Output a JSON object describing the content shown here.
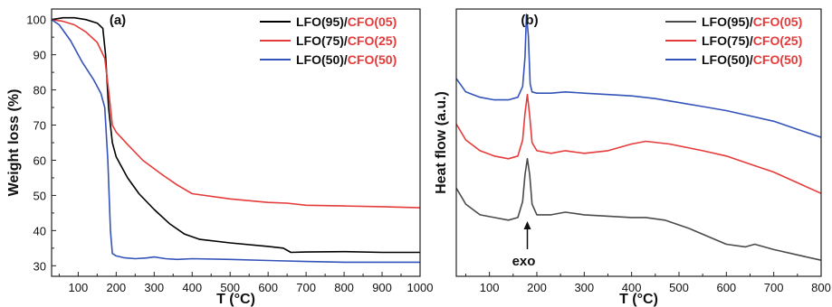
{
  "colors": {
    "black": "#000000",
    "red": "#e53b3b",
    "blue": "#3353b8",
    "gray": "#4a4a4a",
    "legend_red_text": "#e53b3b"
  },
  "chart_data": [
    {
      "type": "line",
      "panel_label": "(a)",
      "xlabel": "T (°C)",
      "ylabel": "Weight loss (%)",
      "xlim": [
        30,
        1000
      ],
      "ylim": [
        27,
        103
      ],
      "xticks": [
        100,
        200,
        300,
        400,
        500,
        600,
        700,
        800,
        900,
        1000
      ],
      "yticks": [
        30,
        40,
        50,
        60,
        70,
        80,
        90,
        100
      ],
      "grid": false,
      "legend_position": "top-right",
      "series": [
        {
          "name_part1": "LFO(95)/",
          "name_part2": "CFO(05)",
          "color": "#000000",
          "x": [
            30,
            60,
            90,
            120,
            150,
            165,
            172,
            180,
            190,
            200,
            230,
            260,
            300,
            340,
            380,
            420,
            500,
            600,
            640,
            660,
            700,
            800,
            900,
            1000
          ],
          "y": [
            100,
            100.5,
            100.5,
            100,
            99,
            97.5,
            90,
            75,
            65,
            61,
            55,
            50.5,
            46,
            42,
            39,
            37.5,
            36.5,
            35.5,
            35,
            33.8,
            33.9,
            34,
            33.8,
            33.8
          ]
        },
        {
          "name_part1": "LFO(75)/",
          "name_part2": "CFO(25)",
          "color": "#e53b3b",
          "x": [
            30,
            60,
            90,
            120,
            150,
            170,
            180,
            190,
            200,
            230,
            270,
            320,
            360,
            400,
            500,
            600,
            650,
            700,
            800,
            900,
            1000
          ],
          "y": [
            100,
            99.5,
            98.5,
            96.5,
            93.5,
            89,
            80,
            70,
            68,
            64.5,
            60,
            56,
            53,
            50.5,
            49,
            48,
            47.8,
            47.2,
            47,
            46.8,
            46.5
          ]
        },
        {
          "name_part1": "LFO(50)/",
          "name_part2": "CFO(50)",
          "color": "#3353b8",
          "x": [
            30,
            50,
            80,
            110,
            140,
            160,
            170,
            178,
            185,
            190,
            200,
            220,
            250,
            280,
            300,
            330,
            360,
            400,
            500,
            600,
            700,
            800,
            900,
            1000
          ],
          "y": [
            100,
            98.5,
            94,
            88,
            83,
            79,
            75,
            60,
            40,
            33.5,
            32.8,
            32.3,
            32,
            32.2,
            32.5,
            32,
            31.8,
            32,
            31.8,
            31.5,
            31.2,
            31,
            31,
            31
          ]
        }
      ]
    },
    {
      "type": "line",
      "panel_label": "(b)",
      "xlabel": "T (°C)",
      "ylabel": "Heat flow (a.u.)",
      "xlim": [
        30,
        800
      ],
      "ylim": [
        0,
        100
      ],
      "xticks": [
        100,
        200,
        300,
        400,
        500,
        600,
        700,
        800
      ],
      "yticks": [],
      "grid": false,
      "legend_position": "top-right",
      "annotation": {
        "text": "exo",
        "x": 180
      },
      "series": [
        {
          "name_part1": "LFO(95)/",
          "name_part2": "CFO(05)",
          "color": "#4a4a4a",
          "x": [
            30,
            50,
            80,
            110,
            140,
            160,
            170,
            175,
            180,
            185,
            190,
            200,
            230,
            260,
            300,
            350,
            400,
            430,
            470,
            520,
            560,
            600,
            640,
            660,
            700,
            750,
            800
          ],
          "y": [
            33,
            27,
            23,
            22,
            21,
            22,
            28,
            38,
            44,
            38,
            27,
            23,
            23,
            24,
            23,
            22.5,
            22,
            22,
            21,
            18,
            15,
            12,
            11,
            12,
            10,
            8,
            6
          ]
        },
        {
          "name_part1": "LFO(75)/",
          "name_part2": "CFO(25)",
          "color": "#e53b3b",
          "x": [
            30,
            50,
            80,
            110,
            140,
            160,
            170,
            175,
            180,
            185,
            190,
            200,
            230,
            260,
            300,
            350,
            400,
            430,
            480,
            550,
            600,
            650,
            700,
            750,
            800
          ],
          "y": [
            57,
            51,
            47,
            45,
            44,
            45,
            51,
            61,
            68,
            60,
            50,
            47,
            46,
            47,
            46,
            47,
            49.5,
            50.5,
            49.5,
            47,
            45,
            42,
            39,
            35,
            31
          ]
        },
        {
          "name_part1": "LFO(50)/",
          "name_part2": "CFO(50)",
          "color": "#3353b8",
          "x": [
            30,
            50,
            80,
            110,
            140,
            160,
            170,
            175,
            178,
            182,
            186,
            190,
            200,
            230,
            260,
            300,
            350,
            400,
            450,
            500,
            550,
            600,
            650,
            700,
            750,
            800
          ],
          "y": [
            74,
            69,
            67,
            66,
            66,
            67,
            71,
            82,
            98,
            90,
            72,
            69,
            68.5,
            68.5,
            69,
            68.5,
            68,
            67.5,
            66.5,
            65,
            63.5,
            62,
            60,
            58,
            55,
            52
          ]
        }
      ]
    }
  ]
}
